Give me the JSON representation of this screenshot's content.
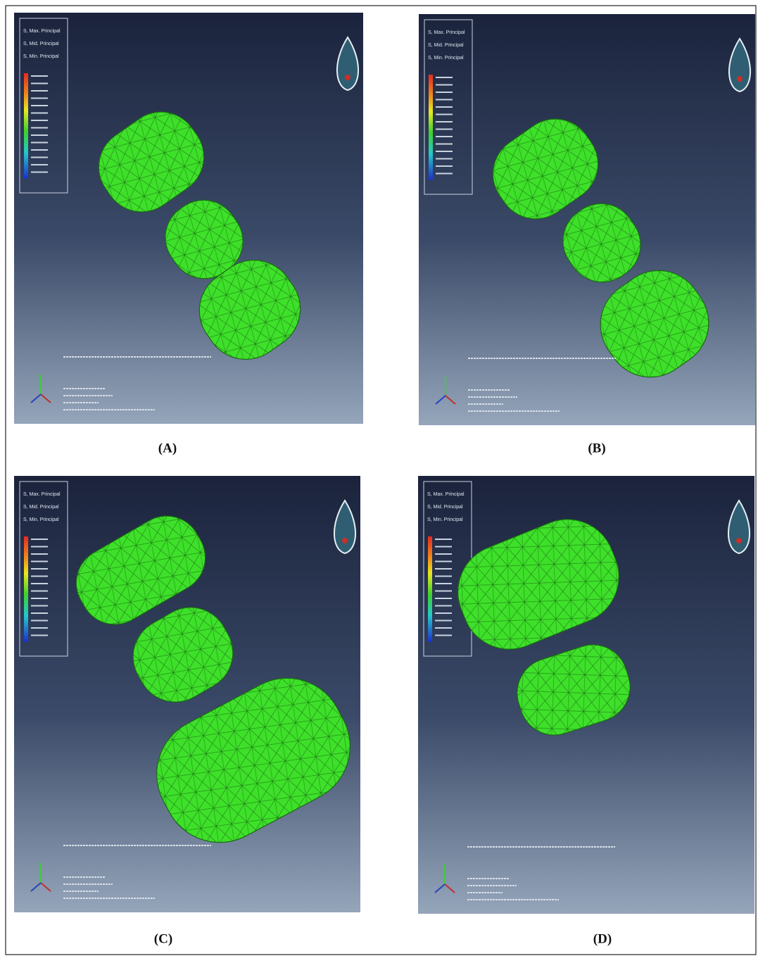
{
  "panels": [
    {
      "caption": "(A)",
      "legend": [
        "S, Max. Principal",
        "S, Mid. Principal",
        "S, Min. Principal"
      ]
    },
    {
      "caption": "(B)",
      "legend": [
        "S, Max. Principal",
        "S, Mid. Principal",
        "S, Min. Principal"
      ]
    },
    {
      "caption": "(C)",
      "legend": [
        "S, Max. Principal",
        "S, Mid. Principal",
        "S, Min. Principal"
      ]
    },
    {
      "caption": "(D)",
      "legend": [
        "S, Max. Principal",
        "S, Mid. Principal",
        "S, Min. Principal"
      ]
    }
  ]
}
